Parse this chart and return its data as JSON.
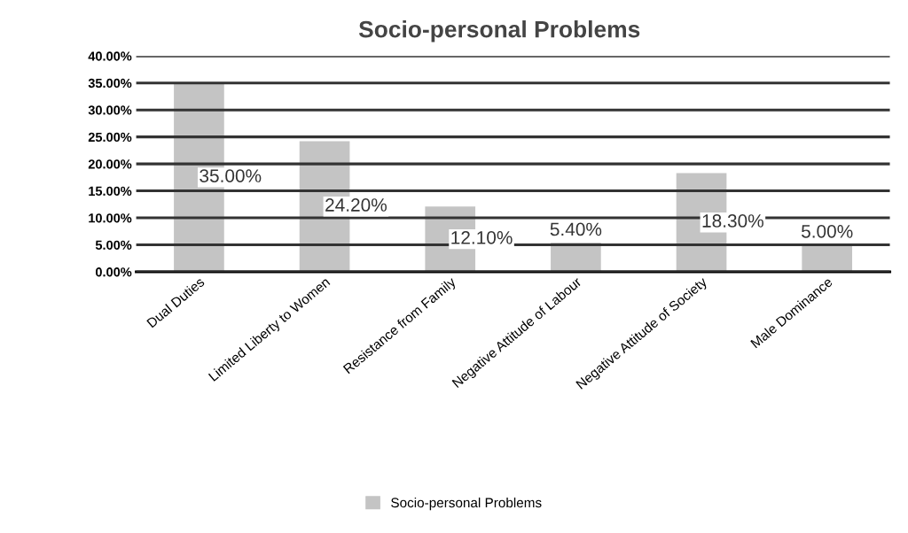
{
  "chart_data": {
    "type": "bar",
    "title": "Socio-personal Problems",
    "categories": [
      "Dual Duties",
      "Limited Liberty to Women",
      "Resistance from Family",
      "Negative Attitude of Labour",
      "Negative Attitude of Society",
      "Male Dominance"
    ],
    "series": [
      {
        "name": "Socio-personal Problems",
        "color": "#c4c4c4",
        "values": [
          35.0,
          24.2,
          12.1,
          5.4,
          18.3,
          5.0
        ],
        "value_labels": [
          "35.00%",
          "24.20%",
          "12.10%",
          "5.40%",
          "18.30%",
          "5.00%"
        ]
      }
    ],
    "ylim": [
      0,
      40
    ],
    "yticks": [
      {
        "value": 0,
        "label": "0.00%"
      },
      {
        "value": 5,
        "label": "5.00%"
      },
      {
        "value": 10,
        "label": "10.00%"
      },
      {
        "value": 15,
        "label": "15.00%"
      },
      {
        "value": 20,
        "label": "20.00%"
      },
      {
        "value": 25,
        "label": "25.00%"
      },
      {
        "value": 30,
        "label": "30.00%"
      },
      {
        "value": 35,
        "label": "35.00%"
      },
      {
        "value": 40,
        "label": "40.00%"
      }
    ],
    "grid": "y",
    "legend": "bottom"
  }
}
